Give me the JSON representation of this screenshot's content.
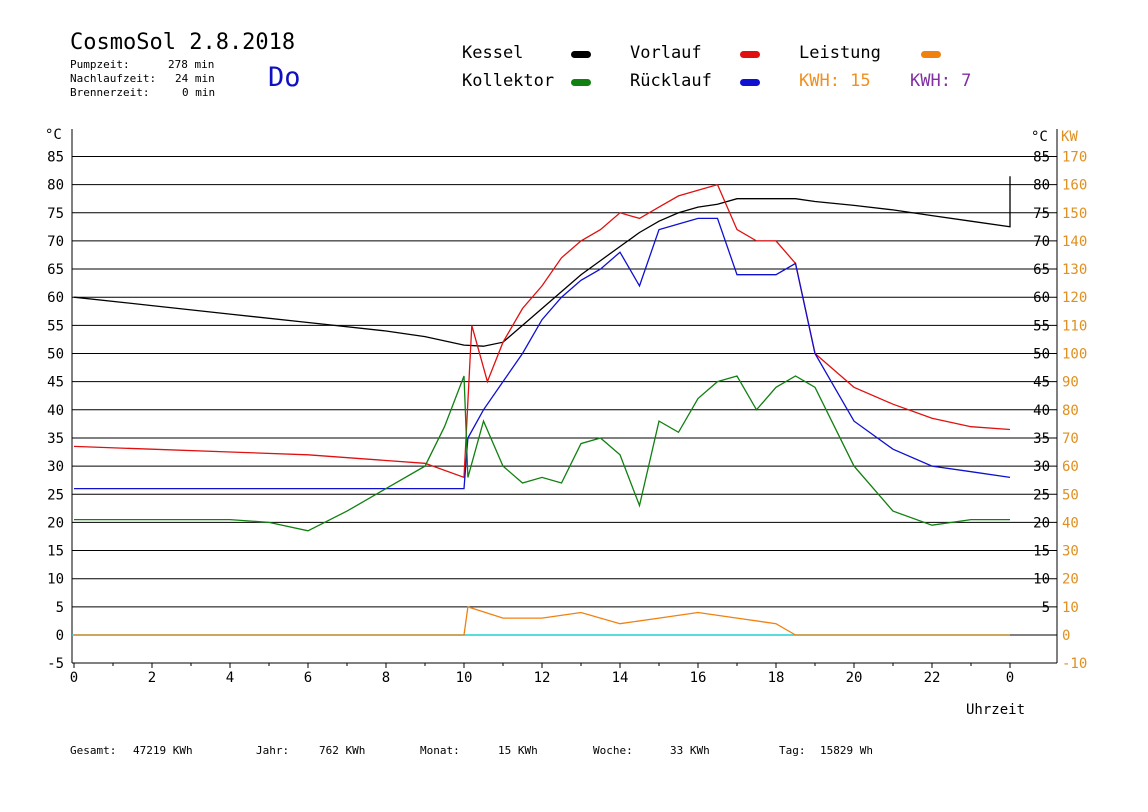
{
  "header": {
    "title": "CosmoSol 2.8.2018",
    "day": "Do",
    "pumpzeit_label": "Pumpzeit:",
    "pumpzeit_value": "278 min",
    "nachlaufzeit_label": "Nachlaufzeit:",
    "nachlaufzeit_value": "24 min",
    "brennerzeit_label": "Brennerzeit:",
    "brennerzeit_value": "0 min"
  },
  "legend": {
    "kessel": "Kessel",
    "kollektor": "Kollektor",
    "vorlauf": "Vorlauf",
    "ruecklauf": "Rücklauf",
    "leistung": "Leistung",
    "kwh1": "KWH: 15",
    "kwh2": "KWH: 7"
  },
  "colors": {
    "kessel": "#000000",
    "kollektor": "#108010",
    "vorlauf": "#e01010",
    "ruecklauf": "#1010d0",
    "leistung": "#f08010",
    "kwh2": "#8030a0",
    "baseline": "#20d0d0",
    "axis_right": "#e09020"
  },
  "footer": {
    "gesamt_label": "Gesamt:",
    "gesamt_value": "47219 KWh",
    "jahr_label": "Jahr:",
    "jahr_value": "762 KWh",
    "monat_label": "Monat:",
    "monat_value": "15 KWh",
    "woche_label": "Woche:",
    "woche_value": "33 KWh",
    "tag_label": "Tag:",
    "tag_value": "15829 Wh"
  },
  "chart_data": {
    "type": "line",
    "xlabel": "Uhrzeit",
    "ylabel_left": "°C",
    "ylabel_right_1": "°C",
    "ylabel_right_2": "KW",
    "xlim": [
      0,
      24
    ],
    "ylim": [
      -5,
      90
    ],
    "x_ticks": [
      "0",
      "2",
      "4",
      "6",
      "8",
      "10",
      "12",
      "14",
      "16",
      "18",
      "20",
      "22",
      "0"
    ],
    "y_ticks_left": [
      "-5",
      "0",
      "5",
      "10",
      "15",
      "20",
      "25",
      "30",
      "35",
      "40",
      "45",
      "50",
      "55",
      "60",
      "65",
      "70",
      "75",
      "80",
      "85"
    ],
    "y_ticks_right_temp": [
      "5",
      "10",
      "15",
      "20",
      "25",
      "30",
      "35",
      "40",
      "45",
      "50",
      "55",
      "60",
      "65",
      "70",
      "75",
      "80",
      "85"
    ],
    "y_ticks_right_kw": [
      "-10",
      "0",
      "10",
      "20",
      "30",
      "40",
      "50",
      "60",
      "70",
      "80",
      "90",
      "100",
      "110",
      "120",
      "130",
      "140",
      "150",
      "160",
      "170"
    ],
    "grid": true,
    "series": [
      {
        "name": "Kessel",
        "x": [
          0,
          2,
          4,
          6,
          8,
          9,
          10,
          10.5,
          11,
          11.5,
          12,
          12.5,
          13,
          13.5,
          14,
          14.5,
          15,
          15.5,
          16,
          16.5,
          17,
          17.5,
          18,
          18.5,
          19,
          20,
          21,
          22,
          23,
          24,
          24
        ],
        "y": [
          60,
          58.5,
          57,
          55.5,
          54,
          53,
          51.5,
          51.3,
          52,
          55,
          58,
          61,
          64,
          66.5,
          69,
          71.5,
          73.5,
          75,
          76,
          76.5,
          77.5,
          77.5,
          77.5,
          77.5,
          77,
          76.3,
          75.5,
          74.5,
          73.5,
          72.5,
          81.5
        ]
      },
      {
        "name": "Vorlauf",
        "x": [
          0,
          2,
          4,
          6,
          8,
          9,
          10,
          10.2,
          10.6,
          11,
          11.5,
          12,
          12.5,
          13,
          13.5,
          14,
          14.5,
          15,
          15.5,
          16,
          16.5,
          17,
          17.5,
          18,
          18.5,
          19,
          20,
          21,
          22,
          23,
          24
        ],
        "y": [
          33.5,
          33,
          32.5,
          32,
          31,
          30.5,
          28,
          55,
          45,
          52,
          58,
          62,
          67,
          70,
          72,
          75,
          74,
          76,
          78,
          79,
          80,
          72,
          70,
          70,
          66,
          50,
          44,
          41,
          38.5,
          37,
          36.5
        ]
      },
      {
        "name": "Rücklauf",
        "x": [
          0,
          2,
          4,
          6,
          8,
          9,
          10,
          10.1,
          10.5,
          11,
          11.5,
          12,
          12.5,
          13,
          13.5,
          14,
          14.5,
          15,
          15.5,
          16,
          16.5,
          17,
          17.5,
          18,
          18.5,
          19,
          20,
          21,
          22,
          23,
          24
        ],
        "y": [
          26,
          26,
          26,
          26,
          26,
          26,
          26,
          35,
          40,
          45,
          50,
          56,
          60,
          63,
          65,
          68,
          62,
          72,
          73,
          74,
          74,
          64,
          64,
          64,
          66,
          50,
          38,
          33,
          30,
          29,
          28
        ]
      },
      {
        "name": "Kollektor",
        "x": [
          0,
          2,
          4,
          5,
          6,
          7,
          8,
          9,
          9.5,
          10,
          10.1,
          10.5,
          11,
          11.5,
          12,
          12.5,
          13,
          13.5,
          14,
          14.5,
          15,
          15.5,
          16,
          16.5,
          17,
          17.5,
          18,
          18.5,
          19,
          20,
          21,
          22,
          23,
          24
        ],
        "y": [
          20.5,
          20.5,
          20.5,
          20,
          18.5,
          22,
          26,
          30,
          37,
          46,
          28,
          38,
          30,
          27,
          28,
          27,
          34,
          35,
          32,
          23,
          38,
          36,
          42,
          45,
          46,
          40,
          44,
          46,
          44,
          30,
          22,
          19.5,
          20.5,
          20.5
        ]
      },
      {
        "name": "Leistung",
        "x": [
          0,
          10,
          10.1,
          11,
          12,
          13,
          14,
          15,
          16,
          17,
          18,
          18.5,
          24
        ],
        "y": [
          0,
          0,
          5,
          3,
          3,
          4,
          2,
          3,
          4,
          3,
          2,
          0,
          0
        ]
      }
    ]
  }
}
